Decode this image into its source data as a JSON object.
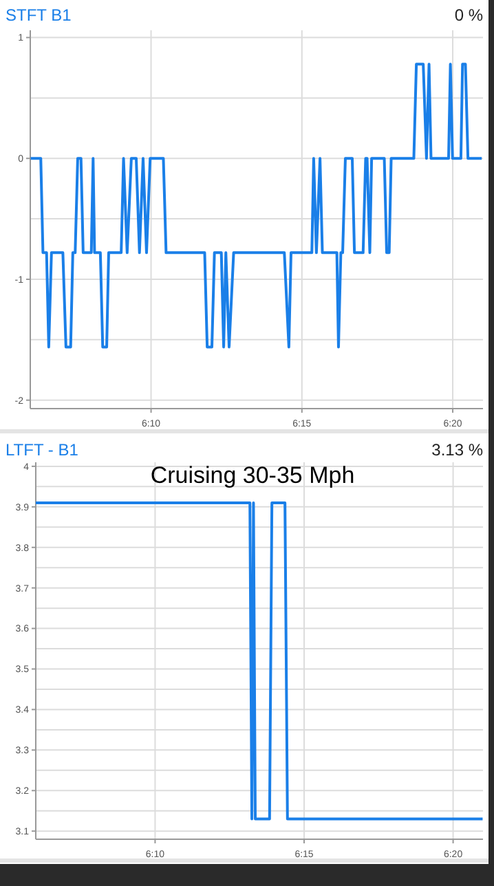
{
  "chart_data": [
    {
      "type": "line",
      "title": "STFT B1",
      "subtitle": "0 %",
      "grid": true,
      "x": [
        6.1002,
        6.1058,
        6.107,
        6.109,
        6.1102,
        6.1117,
        6.118,
        6.1197,
        6.1223,
        6.1235,
        6.1248,
        6.1262,
        6.128,
        6.1292,
        6.1337,
        6.1347,
        6.1355,
        6.1387,
        6.14,
        6.1422,
        6.1433,
        6.1502,
        6.1515,
        6.1535,
        6.1558,
        6.1585,
        6.1603,
        6.1623,
        6.1642,
        6.1662,
        6.1735,
        6.175,
        6.1963,
        6.1977,
        6.2003,
        6.2017,
        6.2055,
        6.2068,
        6.208,
        6.2098,
        6.2123,
        6.2403,
        6.2428,
        6.244,
        6.2555,
        6.2565,
        6.258,
        6.26,
        6.2613,
        6.2693,
        6.2702,
        6.2715,
        6.2725,
        6.274,
        6.2778,
        6.279,
        6.2838,
        6.2852,
        6.286,
        6.2875,
        6.2885,
        6.2955,
        6.2968,
        6.2982,
        6.2993,
        6.3118,
        6.3132,
        6.317,
        6.3188,
        6.3202,
        6.3213,
        6.331,
        6.332,
        6.3332,
        6.3378,
        6.3387,
        6.3403,
        6.3417,
        6.3493
      ],
      "series": [
        {
          "color": "#1a7fe8",
          "values": [
            0,
            0,
            -0.78,
            -0.78,
            -1.56,
            -0.78,
            -0.78,
            -1.56,
            -1.56,
            -0.78,
            -0.78,
            0,
            0,
            -0.78,
            -0.78,
            0,
            -0.78,
            -0.78,
            -1.56,
            -1.56,
            -0.78,
            -0.78,
            0,
            -0.78,
            0,
            0,
            -0.78,
            0,
            -0.78,
            0,
            0,
            -0.78,
            -0.78,
            -1.56,
            -1.56,
            -0.78,
            -0.78,
            -1.56,
            -0.78,
            -1.56,
            -0.78,
            -0.78,
            -1.56,
            -0.78,
            -0.78,
            0,
            -0.78,
            0,
            -0.78,
            -0.78,
            -1.56,
            -0.78,
            -0.78,
            0,
            0,
            -0.78,
            -0.78,
            0,
            0,
            -0.78,
            0,
            0,
            -0.78,
            -0.78,
            0,
            0,
            0.78,
            0.78,
            0,
            0.78,
            0,
            0,
            0.78,
            0,
            0,
            0.78,
            0.78,
            0,
            0
          ]
        }
      ],
      "xlim": [
        6.1,
        6.35
      ],
      "xticks": [
        {
          "value": 6.1667,
          "label": "6:10"
        },
        {
          "value": 6.25,
          "label": "6:15"
        },
        {
          "value": 6.3333,
          "label": "6:20"
        }
      ],
      "ylim": [
        -2.07,
        1.06
      ],
      "yticks": [
        -2,
        {
          "value": -1.5,
          "label": null
        },
        -1,
        {
          "value": -0.5,
          "label": null
        },
        0,
        {
          "value": 0.5,
          "label": null
        },
        1
      ]
    },
    {
      "type": "line",
      "title": "LTFT - B1",
      "subtitle": "3.13 %",
      "annotations": [
        "Cruising 30-35 Mph"
      ],
      "grid": true,
      "x": [
        6.1,
        6.2197,
        6.2208,
        6.2217,
        6.2227,
        6.2307,
        6.232,
        6.2393,
        6.2407,
        6.3498
      ],
      "series": [
        {
          "color": "#1a7fe8",
          "values": [
            3.91,
            3.91,
            3.13,
            3.91,
            3.13,
            3.13,
            3.91,
            3.91,
            3.13,
            3.13
          ]
        }
      ],
      "xlim": [
        6.1,
        6.35
      ],
      "xticks": [
        {
          "value": 6.1667,
          "label": "6:10"
        },
        {
          "value": 6.25,
          "label": "6:15"
        },
        {
          "value": 6.3333,
          "label": "6:20"
        }
      ],
      "ylim": [
        3.08,
        4.01
      ],
      "yticks": [
        3.1,
        {
          "value": 3.15,
          "label": null
        },
        3.2,
        {
          "value": 3.25,
          "label": null
        },
        3.3,
        {
          "value": 3.35,
          "label": null
        },
        3.4,
        {
          "value": 3.45,
          "label": null
        },
        3.5,
        {
          "value": 3.55,
          "label": null
        },
        3.6,
        {
          "value": 3.65,
          "label": null
        },
        3.7,
        {
          "value": 3.75,
          "label": null
        },
        3.8,
        {
          "value": 3.85,
          "label": null
        },
        3.9,
        {
          "value": 3.95,
          "label": null
        },
        4
      ]
    }
  ]
}
